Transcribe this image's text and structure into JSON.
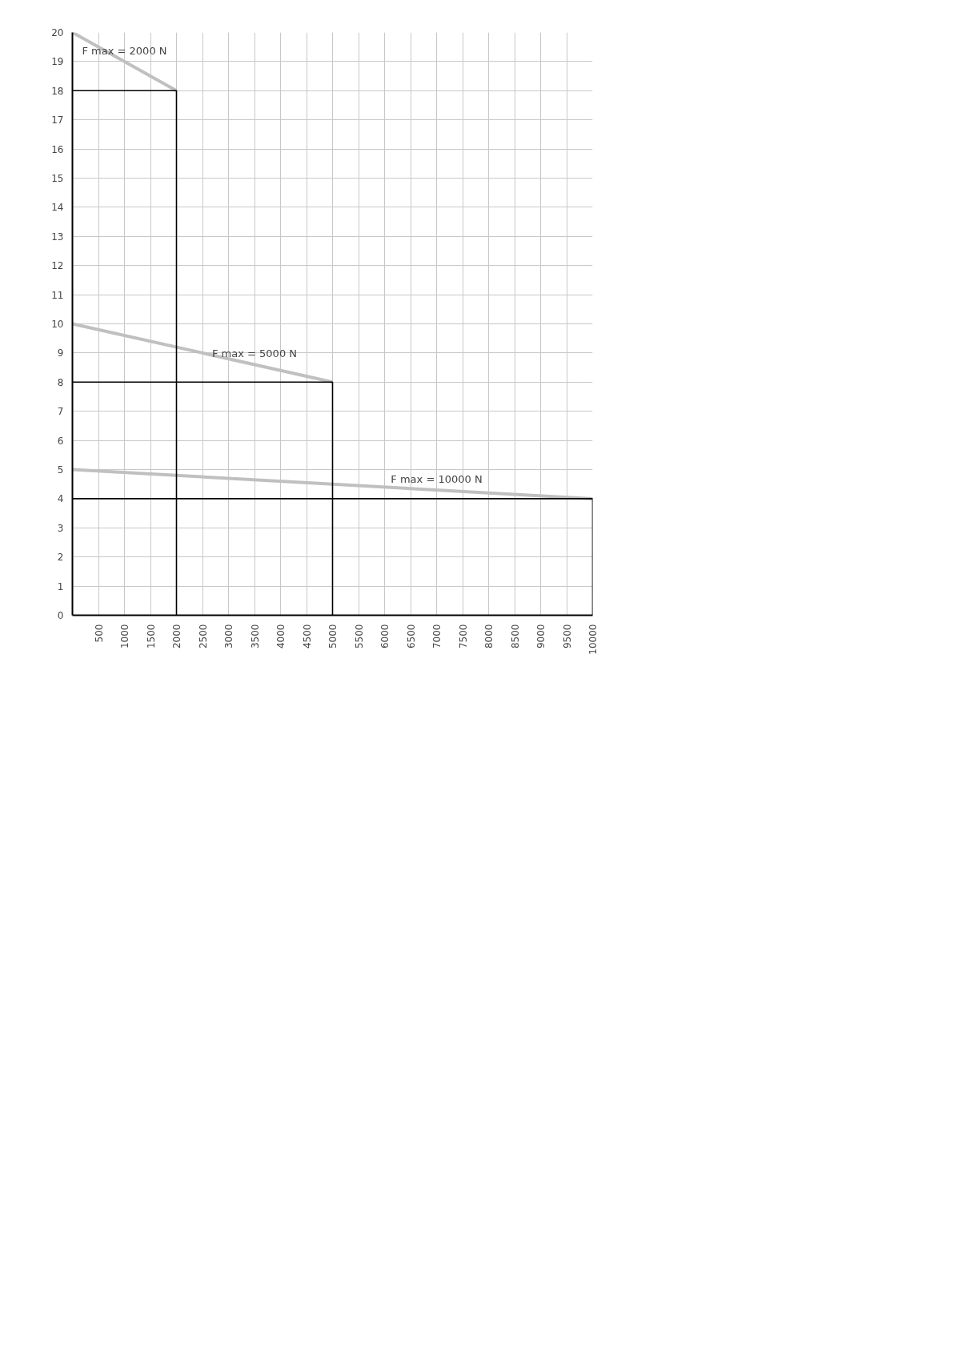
{
  "chart_data": {
    "type": "line",
    "xlim": [
      0,
      10000
    ],
    "ylim": [
      0,
      20
    ],
    "xticks": [
      500,
      1000,
      1500,
      2000,
      2500,
      3000,
      3500,
      4000,
      4500,
      5000,
      5500,
      6000,
      6500,
      7000,
      7500,
      8000,
      8500,
      9000,
      9500,
      10000
    ],
    "yticks": [
      0,
      1,
      2,
      3,
      4,
      5,
      6,
      7,
      8,
      9,
      10,
      11,
      12,
      13,
      14,
      15,
      16,
      17,
      18,
      19,
      20
    ],
    "grid": true,
    "marker": "none",
    "line_style": "solid",
    "series": [
      {
        "color": "#c0c0c0",
        "x": [
          0,
          2000
        ],
        "values": [
          20,
          18
        ]
      },
      {
        "color": "#c0c0c0",
        "x": [
          0,
          5000
        ],
        "values": [
          10,
          8
        ]
      },
      {
        "color": "#c0c0c0",
        "x": [
          0,
          10000
        ],
        "values": [
          5,
          4
        ]
      },
      {
        "color": "#000000",
        "x": [
          0,
          2000,
          2000
        ],
        "values": [
          18,
          18,
          0
        ]
      },
      {
        "color": "#000000",
        "x": [
          0,
          5000,
          5000
        ],
        "values": [
          8,
          8,
          0
        ]
      },
      {
        "color": "#000000",
        "x": [
          0,
          10000,
          10000
        ],
        "values": [
          4,
          4,
          0
        ]
      }
    ],
    "annotations": [
      {
        "text": "F max = 2000 N",
        "x": 1000,
        "y": 19
      },
      {
        "text": "F max = 5000 N",
        "x": 3500,
        "y": 8.6
      },
      {
        "text": "F max = 10000 N",
        "x": 7000,
        "y": 4.3
      }
    ]
  }
}
